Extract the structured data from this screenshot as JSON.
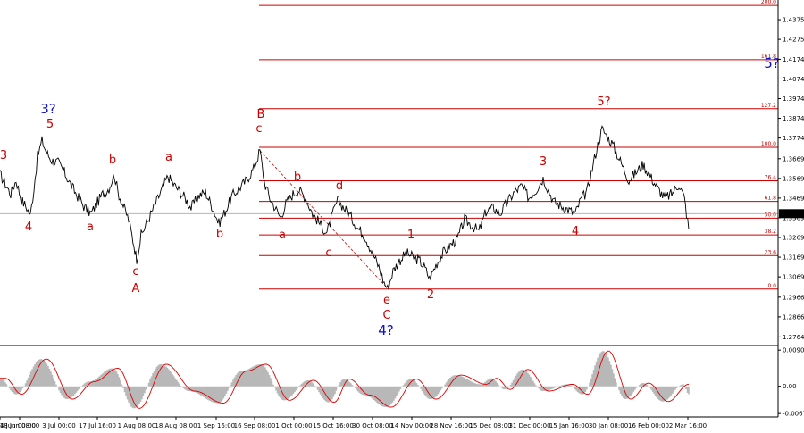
{
  "chart_data": [
    {
      "type": "line",
      "instrument_price": "1.3390",
      "price_axis": {
        "ticks": [
          "1.2764",
          "1.2866",
          "1.2966",
          "1.3069",
          "1.3169",
          "1.3269",
          "1.3369",
          "1.3469",
          "1.3569",
          "1.3669",
          "1.3774",
          "1.3874",
          "1.3974",
          "1.4074",
          "1.4174",
          "1.4275",
          "1.4375"
        ],
        "range": [
          1.2725,
          1.4475
        ]
      },
      "time_axis": {
        "ticks": [
          "4 Jun 00:00",
          "18 Jun 08:00",
          "3 Jul 00:00",
          "17 Jul 16:00",
          "1 Aug 08:00",
          "18 Aug 08:00",
          "1 Sep 16:00",
          "16 Sep 08:00",
          "1 Oct 00:00",
          "15 Oct 16:00",
          "30 Oct 08:00",
          "14 Nov 00:00",
          "28 Nov 16:00",
          "15 Dec 08:00",
          "31 Dec 00:00",
          "15 Jan 16:00",
          "30 Jan 08:00",
          "16 Feb 00:00",
          "2 Mar 16:00"
        ]
      },
      "fib_levels": [
        {
          "label": "0.0",
          "value": 1.3007
        },
        {
          "label": "23.6",
          "value": 1.3177
        },
        {
          "label": "38.2",
          "value": 1.3282
        },
        {
          "label": "50.0",
          "value": 1.3367
        },
        {
          "label": "61.8",
          "value": 1.3452
        },
        {
          "label": "76.4",
          "value": 1.3557
        },
        {
          "label": "100.0",
          "value": 1.3727
        },
        {
          "label": "127.2",
          "value": 1.3923
        },
        {
          "label": "161.8",
          "value": 1.4172
        },
        {
          "label": "200.0",
          "value": 1.4447
        }
      ],
      "price_path": [
        [
          0,
          1.359
        ],
        [
          6,
          1.354
        ],
        [
          12,
          1.349
        ],
        [
          18,
          1.356
        ],
        [
          24,
          1.346
        ],
        [
          30,
          1.342
        ],
        [
          34,
          1.338
        ],
        [
          38,
          1.352
        ],
        [
          42,
          1.368
        ],
        [
          47,
          1.376
        ],
        [
          52,
          1.37
        ],
        [
          58,
          1.366
        ],
        [
          65,
          1.365
        ],
        [
          72,
          1.36
        ],
        [
          80,
          1.353
        ],
        [
          88,
          1.347
        ],
        [
          95,
          1.342
        ],
        [
          102,
          1.339
        ],
        [
          108,
          1.344
        ],
        [
          115,
          1.349
        ],
        [
          122,
          1.352
        ],
        [
          128,
          1.359
        ],
        [
          132,
          1.35
        ],
        [
          138,
          1.343
        ],
        [
          144,
          1.336
        ],
        [
          150,
          1.323
        ],
        [
          153,
          1.316
        ],
        [
          158,
          1.328
        ],
        [
          165,
          1.335
        ],
        [
          172,
          1.342
        ],
        [
          180,
          1.35
        ],
        [
          188,
          1.358
        ],
        [
          194,
          1.354
        ],
        [
          200,
          1.351
        ],
        [
          207,
          1.347
        ],
        [
          214,
          1.342
        ],
        [
          222,
          1.348
        ],
        [
          230,
          1.35
        ],
        [
          238,
          1.342
        ],
        [
          245,
          1.334
        ],
        [
          252,
          1.34
        ],
        [
          260,
          1.348
        ],
        [
          268,
          1.352
        ],
        [
          276,
          1.356
        ],
        [
          284,
          1.362
        ],
        [
          291,
          1.371
        ],
        [
          296,
          1.355
        ],
        [
          302,
          1.347
        ],
        [
          308,
          1.342
        ],
        [
          314,
          1.337
        ],
        [
          320,
          1.344
        ],
        [
          328,
          1.349
        ],
        [
          335,
          1.351
        ],
        [
          342,
          1.347
        ],
        [
          350,
          1.339
        ],
        [
          358,
          1.334
        ],
        [
          366,
          1.329
        ],
        [
          372,
          1.338
        ],
        [
          378,
          1.346
        ],
        [
          385,
          1.342
        ],
        [
          392,
          1.338
        ],
        [
          400,
          1.332
        ],
        [
          408,
          1.328
        ],
        [
          416,
          1.32
        ],
        [
          424,
          1.312
        ],
        [
          430,
          1.304
        ],
        [
          434,
          1.301
        ],
        [
          440,
          1.31
        ],
        [
          447,
          1.315
        ],
        [
          455,
          1.319
        ],
        [
          462,
          1.317
        ],
        [
          470,
          1.315
        ],
        [
          476,
          1.311
        ],
        [
          481,
          1.306
        ],
        [
          488,
          1.313
        ],
        [
          496,
          1.319
        ],
        [
          504,
          1.323
        ],
        [
          512,
          1.326
        ],
        [
          520,
          1.336
        ],
        [
          528,
          1.333
        ],
        [
          536,
          1.33
        ],
        [
          544,
          1.34
        ],
        [
          552,
          1.342
        ],
        [
          560,
          1.339
        ],
        [
          568,
          1.345
        ],
        [
          576,
          1.35
        ],
        [
          584,
          1.353
        ],
        [
          592,
          1.347
        ],
        [
          600,
          1.351
        ],
        [
          608,
          1.357
        ],
        [
          614,
          1.351
        ],
        [
          620,
          1.345
        ],
        [
          628,
          1.343
        ],
        [
          636,
          1.341
        ],
        [
          644,
          1.339
        ],
        [
          650,
          1.346
        ],
        [
          657,
          1.35
        ],
        [
          663,
          1.362
        ],
        [
          668,
          1.372
        ],
        [
          674,
          1.382
        ],
        [
          680,
          1.378
        ],
        [
          686,
          1.374
        ],
        [
          692,
          1.368
        ],
        [
          698,
          1.362
        ],
        [
          704,
          1.356
        ],
        [
          712,
          1.36
        ],
        [
          720,
          1.364
        ],
        [
          728,
          1.358
        ],
        [
          736,
          1.352
        ],
        [
          744,
          1.347
        ],
        [
          752,
          1.349
        ],
        [
          760,
          1.354
        ],
        [
          766,
          1.347
        ],
        [
          771,
          1.331
        ]
      ],
      "annotations": [
        {
          "text": "3",
          "color": "#cc0000",
          "size": "normal",
          "px": [
            4,
            178
          ]
        },
        {
          "text": "4",
          "color": "#cc0000",
          "size": "normal",
          "px": [
            32,
            258
          ]
        },
        {
          "text": "3?",
          "color": "#1010cc",
          "size": "big",
          "px": [
            54,
            127
          ]
        },
        {
          "text": "5",
          "color": "#cc0000",
          "size": "normal",
          "px": [
            56,
            143
          ]
        },
        {
          "text": "a",
          "color": "#cc0000",
          "size": "normal",
          "px": [
            101,
            258
          ]
        },
        {
          "text": "b",
          "color": "#cc0000",
          "size": "normal",
          "px": [
            126,
            183
          ]
        },
        {
          "text": "c",
          "color": "#cc0000",
          "size": "normal",
          "px": [
            152,
            308
          ]
        },
        {
          "text": "A",
          "color": "#cc0000",
          "size": "normal",
          "px": [
            152,
            327
          ]
        },
        {
          "text": "a",
          "color": "#cc0000",
          "size": "normal",
          "px": [
            189,
            180
          ]
        },
        {
          "text": "b",
          "color": "#cc0000",
          "size": "normal",
          "px": [
            246,
            266
          ]
        },
        {
          "text": "B",
          "color": "#cc0000",
          "size": "normal",
          "px": [
            292,
            132
          ]
        },
        {
          "text": "c",
          "color": "#cc0000",
          "size": "normal",
          "px": [
            290,
            148
          ]
        },
        {
          "text": "b",
          "color": "#cc0000",
          "size": "normal",
          "px": [
            333,
            202
          ]
        },
        {
          "text": "a",
          "color": "#cc0000",
          "size": "normal",
          "px": [
            316,
            267
          ]
        },
        {
          "text": "d",
          "color": "#cc0000",
          "size": "normal",
          "px": [
            380,
            212
          ]
        },
        {
          "text": "c",
          "color": "#cc0000",
          "size": "normal",
          "px": [
            368,
            287
          ]
        },
        {
          "text": "1",
          "color": "#cc0000",
          "size": "normal",
          "px": [
            460,
            267
          ]
        },
        {
          "text": "e",
          "color": "#cc0000",
          "size": "normal",
          "px": [
            433,
            340
          ]
        },
        {
          "text": "C",
          "color": "#cc0000",
          "size": "normal",
          "px": [
            433,
            357
          ]
        },
        {
          "text": "4?",
          "color": "#1010cc",
          "size": "big",
          "px": [
            432,
            375
          ]
        },
        {
          "text": "2",
          "color": "#cc0000",
          "size": "normal",
          "px": [
            482,
            334
          ]
        },
        {
          "text": "3",
          "color": "#cc0000",
          "size": "normal",
          "px": [
            608,
            185
          ]
        },
        {
          "text": "4",
          "color": "#cc0000",
          "size": "normal",
          "px": [
            644,
            263
          ]
        },
        {
          "text": "5?",
          "color": "#cc0000",
          "size": "normal",
          "px": [
            676,
            118
          ]
        },
        {
          "text": "5?",
          "color": "#1010cc",
          "size": "big",
          "px": [
            864,
            76
          ]
        }
      ]
    },
    {
      "type": "area",
      "name": "oscillator",
      "ticks": [
        "0.00902",
        "0.00",
        "-0.00679"
      ],
      "ylim": [
        -0.0072,
        0.0095
      ]
    }
  ],
  "colors": {
    "fib": "#cc0000",
    "price": "#000000",
    "wave_red": "#cc0000",
    "wave_blue": "#1010cc",
    "hist": "#b8b8b8",
    "signal": "#dd0000"
  },
  "price_label": {
    "value": "1.3390"
  }
}
